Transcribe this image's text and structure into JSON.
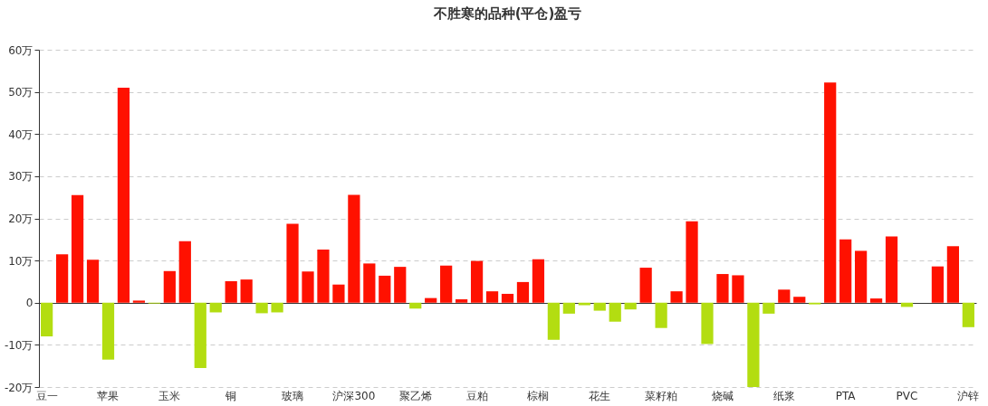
{
  "chart_data": {
    "type": "bar",
    "title": "不胜寒的品种(平仓)盈亏",
    "categories": [
      "豆一",
      null,
      null,
      null,
      "苹果",
      null,
      null,
      null,
      "玉米",
      null,
      null,
      null,
      "铜",
      null,
      null,
      null,
      "玻璃",
      null,
      null,
      null,
      "沪深300",
      null,
      null,
      null,
      "聚乙烯",
      null,
      null,
      null,
      "豆粕",
      null,
      null,
      null,
      "棕榈",
      null,
      null,
      null,
      "花生",
      null,
      null,
      null,
      "菜籽粕",
      null,
      null,
      null,
      "烧碱",
      null,
      null,
      null,
      "纸浆",
      null,
      null,
      null,
      "PTA",
      null,
      null,
      null,
      "PVC",
      null,
      null,
      null,
      "沪锌"
    ],
    "values": [
      -8,
      11.5,
      25.5,
      10.2,
      -13.5,
      51,
      0.5,
      -0.2,
      7.5,
      14.6,
      -15.5,
      -2.3,
      5.1,
      5.5,
      -2.5,
      -2.3,
      18.7,
      7.4,
      12.6,
      4.3,
      25.6,
      9.3,
      6.4,
      8.5,
      -1.4,
      1.1,
      8.8,
      0.8,
      9.9,
      2.7,
      2.1,
      4.9,
      10.3,
      -8.8,
      -2.6,
      -0.6,
      -1.9,
      -4.5,
      -1.6,
      8.3,
      -6,
      2.7,
      19.3,
      -9.8,
      6.8,
      6.5,
      -20,
      -2.6,
      3.1,
      1.4,
      -0.4,
      52.2,
      15,
      12.3,
      1,
      15.7,
      -1,
      0,
      8.6,
      13.4,
      -5.8
    ],
    "colors": [
      "#b3dd11",
      "#ff1100",
      "#ff1100",
      "#ff1100",
      "#b3dd11",
      "#ff1100",
      "#ff1100",
      "#b3dd11",
      "#ff1100",
      "#ff1100",
      "#b3dd11",
      "#b3dd11",
      "#ff1100",
      "#ff1100",
      "#b3dd11",
      "#b3dd11",
      "#ff1100",
      "#ff1100",
      "#ff1100",
      "#ff1100",
      "#ff1100",
      "#ff1100",
      "#ff1100",
      "#ff1100",
      "#b3dd11",
      "#ff1100",
      "#ff1100",
      "#ff1100",
      "#ff1100",
      "#ff1100",
      "#ff1100",
      "#ff1100",
      "#ff1100",
      "#b3dd11",
      "#b3dd11",
      "#b3dd11",
      "#b3dd11",
      "#b3dd11",
      "#b3dd11",
      "#ff1100",
      "#b3dd11",
      "#ff1100",
      "#ff1100",
      "#b3dd11",
      "#ff1100",
      "#ff1100",
      "#b3dd11",
      "#b3dd11",
      "#ff1100",
      "#ff1100",
      "#b3dd11",
      "#ff1100",
      "#ff1100",
      "#ff1100",
      "#ff1100",
      "#ff1100",
      "#b3dd11",
      "#ff1100",
      "#ff1100",
      "#ff1100",
      "#b3dd11"
    ],
    "ylim": [
      -20,
      60
    ],
    "yticks": [
      {
        "value": -20,
        "label": "-20万"
      },
      {
        "value": -10,
        "label": "-10万"
      },
      0,
      {
        "value": 10,
        "label": "10万"
      },
      {
        "value": 20,
        "label": "20万"
      },
      {
        "value": 30,
        "label": "30万"
      },
      {
        "value": 40,
        "label": "40万"
      },
      {
        "value": 50,
        "label": "50万"
      },
      {
        "value": 60,
        "label": "60万"
      }
    ],
    "grid": "y"
  }
}
